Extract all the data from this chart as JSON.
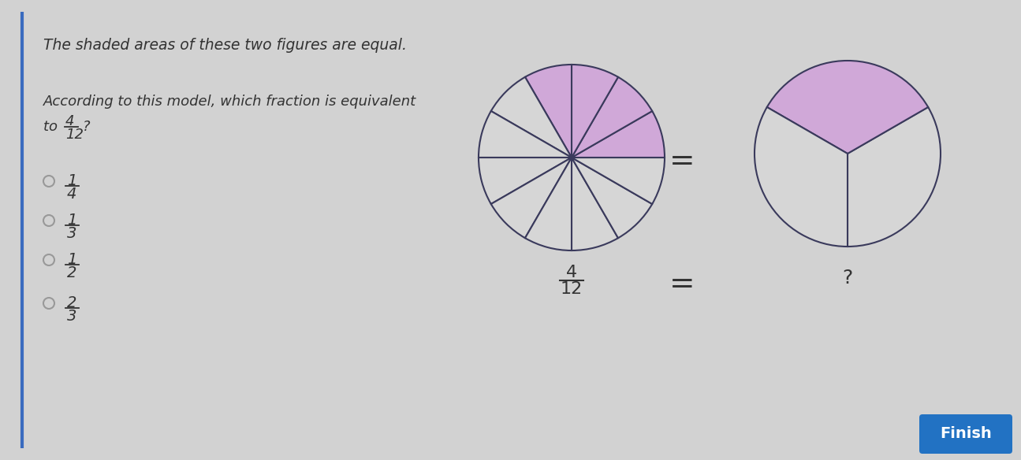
{
  "bg_color": "#d2d2d2",
  "panel_color": "#d6d6d6",
  "title": "The shaded areas of these two figures are equal.",
  "question_line1": "According to this model, which fraction is equivalent",
  "question_line2": "to  4/12 ?",
  "choices_num": [
    "1",
    "1",
    "1",
    "2"
  ],
  "choices_den": [
    "4",
    "3",
    "2",
    "3"
  ],
  "circle1_n": 12,
  "circle1_shaded": [
    3,
    4,
    5,
    6
  ],
  "circle1_shade_color": "#d0a8d8",
  "circle1_line_color": "#3a3a5c",
  "circle1_bg": "#d6d6d6",
  "circle2_n": 3,
  "circle2_shaded": [
    1
  ],
  "circle2_shade_color": "#d0a8d8",
  "circle2_line_color": "#3a3a5c",
  "circle2_bg": "#d6d6d6",
  "finish_bg": "#2272c3",
  "finish_text": "Finish",
  "finish_text_color": "#ffffff",
  "text_color": "#333333",
  "border_color": "#3a6bbf"
}
